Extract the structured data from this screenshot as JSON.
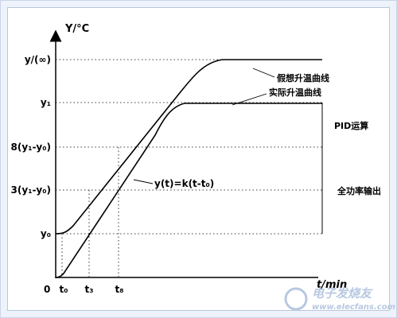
{
  "diagram": {
    "y_axis_label": "Y/°C",
    "x_axis_label": "t/min",
    "origin_label": "0",
    "y_levels": {
      "y_inf": "y/(∞)",
      "y1": "y₁",
      "y_8": "8(y₁-y₀)",
      "y_3": "3(y₁-y₀)",
      "y0": "y₀"
    },
    "t_ticks": {
      "t0": "t₀",
      "t3": "t₃",
      "t8": "t₈"
    },
    "curves": {
      "ideal": "假想升温曲线",
      "actual": "实际升温曲线"
    },
    "formula": "y(t)=k(t-t₀)",
    "regions": {
      "pid": "PID运算",
      "full_power": "全功率输出"
    }
  },
  "watermark": {
    "brand": "电子发烧友",
    "url": "www.elecfans.com"
  }
}
